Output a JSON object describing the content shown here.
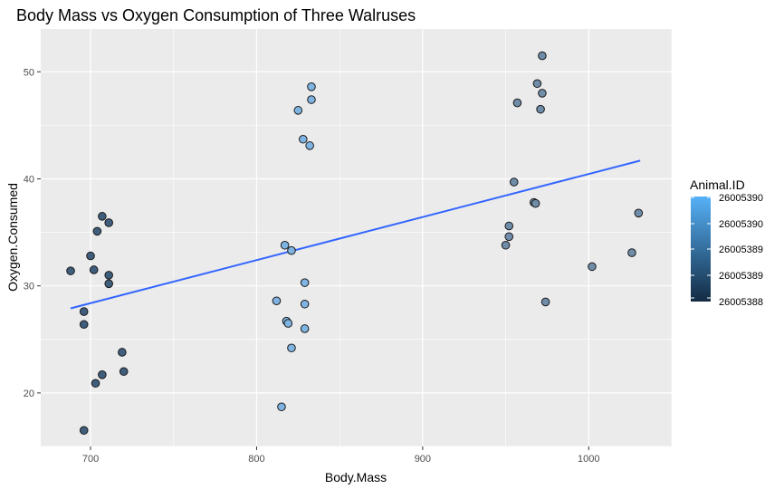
{
  "chart_data": {
    "type": "scatter",
    "title": "Body Mass vs Oxygen Consumption of Three Walruses",
    "xlabel": "Body.Mass",
    "ylabel": "Oxygen.Consumed",
    "xlim": [
      670,
      1050
    ],
    "ylim": [
      15,
      54
    ],
    "x_ticks": [
      700,
      800,
      900,
      1000
    ],
    "y_ticks": [
      20,
      30,
      40,
      50
    ],
    "x_tick_labels": [
      "700",
      "800",
      "900",
      "1000"
    ],
    "y_tick_labels": [
      "20",
      "30",
      "40",
      "50"
    ],
    "grid": true,
    "background": "#EBEBEB",
    "trend_line": {
      "x": [
        688,
        1031
      ],
      "y": [
        27.9,
        41.7
      ],
      "color": "#3366FF"
    },
    "legend": {
      "title": "Animal.ID",
      "placement": "right",
      "labels": [
        "26005390",
        "26005390",
        "26005389",
        "26005389",
        "26005388"
      ],
      "gradient_low": "#132B43",
      "gradient_high": "#56B1F7"
    },
    "series": [
      {
        "color": "#3F5D7C",
        "points": [
          [
            688,
            31.4
          ],
          [
            696,
            27.6
          ],
          [
            696,
            26.4
          ],
          [
            696,
            16.5
          ],
          [
            700,
            32.8
          ],
          [
            702,
            31.5
          ],
          [
            703,
            20.9
          ],
          [
            704,
            35.1
          ],
          [
            707,
            36.5
          ],
          [
            707,
            21.7
          ],
          [
            711,
            35.9
          ],
          [
            711,
            31.0
          ],
          [
            711,
            30.2
          ],
          [
            719,
            23.8
          ],
          [
            720,
            22.0
          ]
        ]
      },
      {
        "color": "#7FB4E2",
        "points": [
          [
            812,
            28.6
          ],
          [
            815,
            18.7
          ],
          [
            817,
            33.8
          ],
          [
            818,
            26.7
          ],
          [
            819,
            26.5
          ],
          [
            821,
            33.3
          ],
          [
            821,
            24.2
          ],
          [
            825,
            46.4
          ],
          [
            828,
            43.7
          ],
          [
            829,
            30.3
          ],
          [
            829,
            28.3
          ],
          [
            829,
            26.0
          ],
          [
            832,
            43.1
          ],
          [
            833,
            47.4
          ],
          [
            833,
            48.6
          ]
        ]
      },
      {
        "color": "#6F8CA8",
        "points": [
          [
            950,
            33.8
          ],
          [
            952,
            35.6
          ],
          [
            952,
            34.6
          ],
          [
            955,
            39.7
          ],
          [
            957,
            47.1
          ],
          [
            967,
            37.8
          ],
          [
            968,
            37.7
          ],
          [
            969,
            48.9
          ],
          [
            971,
            46.5
          ],
          [
            972,
            48.0
          ],
          [
            972,
            51.5
          ],
          [
            974,
            28.5
          ],
          [
            1002,
            31.8
          ],
          [
            1026,
            33.1
          ],
          [
            1030,
            36.8
          ]
        ]
      }
    ]
  }
}
